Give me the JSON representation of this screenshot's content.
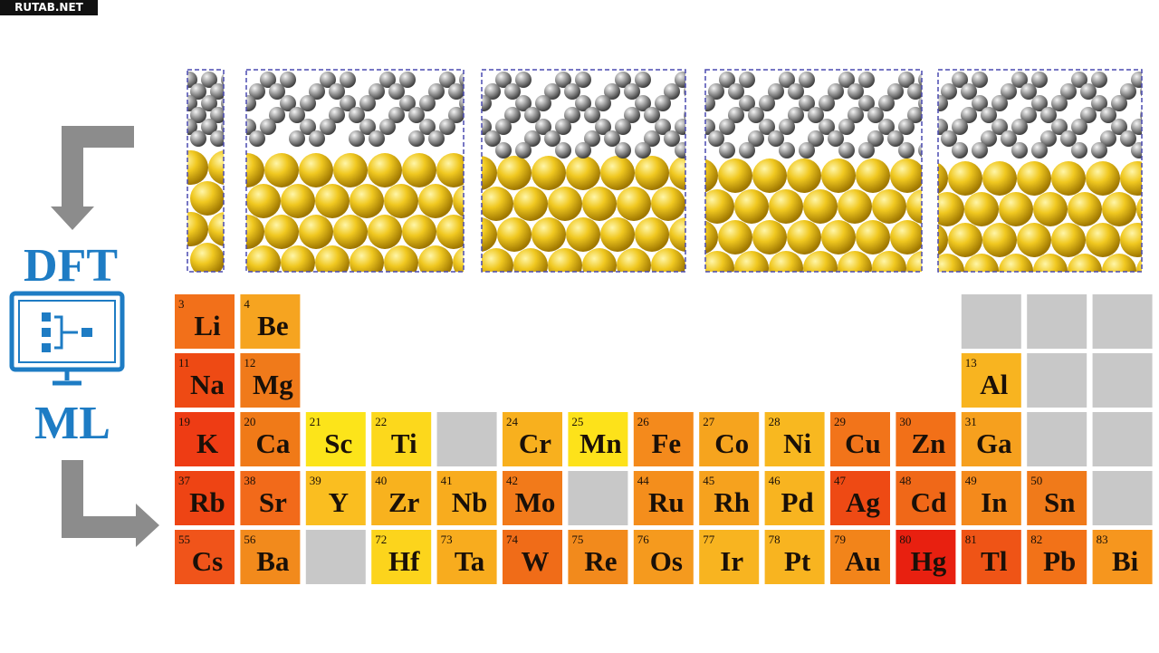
{
  "watermark": "RUTAB.NET",
  "labels": {
    "top": "DFT",
    "bottom": "ML"
  },
  "table": {
    "gray": "#c8c8c8",
    "rows": [
      [
        {
          "number": 3,
          "symbol": "Li",
          "color": "#f2701a"
        },
        {
          "number": 4,
          "symbol": "Be",
          "color": "#f6a420"
        },
        null,
        null,
        null,
        null,
        null,
        null,
        null,
        null,
        null,
        null,
        {
          "color": "#c8c8c8"
        },
        {
          "color": "#c8c8c8"
        },
        {
          "color": "#c8c8c8"
        }
      ],
      [
        {
          "number": 11,
          "symbol": "Na",
          "color": "#ee4a14"
        },
        {
          "number": 12,
          "symbol": "Mg",
          "color": "#f07a1a"
        },
        null,
        null,
        null,
        null,
        null,
        null,
        null,
        null,
        null,
        null,
        {
          "number": 13,
          "symbol": "Al",
          "color": "#f8b420"
        },
        {
          "color": "#c8c8c8"
        },
        {
          "color": "#c8c8c8"
        }
      ],
      [
        {
          "number": 19,
          "symbol": "K",
          "color": "#ee3c14"
        },
        {
          "number": 20,
          "symbol": "Ca",
          "color": "#f07a18"
        },
        {
          "number": 21,
          "symbol": "Sc",
          "color": "#fce41a"
        },
        {
          "number": 22,
          "symbol": "Ti",
          "color": "#fcd81c"
        },
        {
          "color": "#c8c8c8"
        },
        {
          "number": 24,
          "symbol": "Cr",
          "color": "#f8b01e"
        },
        {
          "number": 25,
          "symbol": "Mn",
          "color": "#fde21a"
        },
        {
          "number": 26,
          "symbol": "Fe",
          "color": "#f48a1c"
        },
        {
          "number": 27,
          "symbol": "Co",
          "color": "#f6a41e"
        },
        {
          "number": 28,
          "symbol": "Ni",
          "color": "#f8b820"
        },
        {
          "number": 29,
          "symbol": "Cu",
          "color": "#f2741a"
        },
        {
          "number": 30,
          "symbol": "Zn",
          "color": "#f27018"
        },
        {
          "number": 31,
          "symbol": "Ga",
          "color": "#f6a01e"
        },
        {
          "color": "#c8c8c8"
        },
        {
          "color": "#c8c8c8"
        }
      ],
      [
        {
          "number": 37,
          "symbol": "Rb",
          "color": "#ee4414"
        },
        {
          "number": 38,
          "symbol": "Sr",
          "color": "#f26a1a"
        },
        {
          "number": 39,
          "symbol": "Y",
          "color": "#fabe20"
        },
        {
          "number": 40,
          "symbol": "Zr",
          "color": "#f8b21e"
        },
        {
          "number": 41,
          "symbol": "Nb",
          "color": "#f8ac1e"
        },
        {
          "number": 42,
          "symbol": "Mo",
          "color": "#f27a1a"
        },
        {
          "color": "#c8c8c8"
        },
        {
          "number": 44,
          "symbol": "Ru",
          "color": "#f48e1c"
        },
        {
          "number": 45,
          "symbol": "Rh",
          "color": "#f6a21e"
        },
        {
          "number": 46,
          "symbol": "Pd",
          "color": "#f8b420"
        },
        {
          "number": 47,
          "symbol": "Ag",
          "color": "#ee4a14"
        },
        {
          "number": 48,
          "symbol": "Cd",
          "color": "#f06818"
        },
        {
          "number": 49,
          "symbol": "In",
          "color": "#f48a1c"
        },
        {
          "number": 50,
          "symbol": "Sn",
          "color": "#f07a1a"
        },
        {
          "color": "#c8c8c8"
        }
      ],
      [
        {
          "number": 55,
          "symbol": "Cs",
          "color": "#f0541a"
        },
        {
          "number": 56,
          "symbol": "Ba",
          "color": "#f28a1c"
        },
        {
          "color": "#c8c8c8"
        },
        {
          "number": 72,
          "symbol": "Hf",
          "color": "#fcd41c"
        },
        {
          "number": 73,
          "symbol": "Ta",
          "color": "#f8ac1e"
        },
        {
          "number": 74,
          "symbol": "W",
          "color": "#f06c18"
        },
        {
          "number": 75,
          "symbol": "Re",
          "color": "#f28a1c"
        },
        {
          "number": 76,
          "symbol": "Os",
          "color": "#f59a1e"
        },
        {
          "number": 77,
          "symbol": "Ir",
          "color": "#f8b420"
        },
        {
          "number": 78,
          "symbol": "Pt",
          "color": "#f8b420"
        },
        {
          "number": 79,
          "symbol": "Au",
          "color": "#f2841a"
        },
        {
          "number": 80,
          "symbol": "Hg",
          "color": "#e82010"
        },
        {
          "number": 81,
          "symbol": "Tl",
          "color": "#ef5416"
        },
        {
          "number": 82,
          "symbol": "Pb",
          "color": "#f27218"
        },
        {
          "number": 83,
          "symbol": "Bi",
          "color": "#f6961e"
        }
      ]
    ]
  }
}
